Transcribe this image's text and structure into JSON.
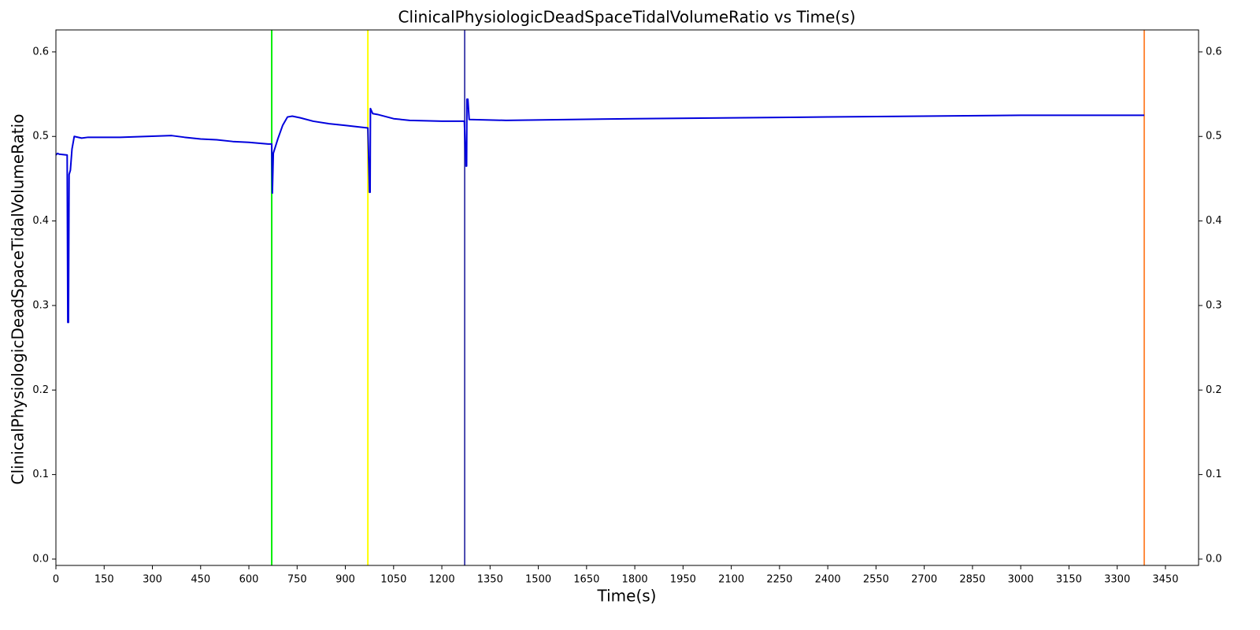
{
  "chart_data": {
    "type": "line",
    "title": "ClinicalPhysiologicDeadSpaceTidalVolumeRatio vs Time(s)",
    "xlabel": "Time(s)",
    "ylabel": "ClinicalPhysiologicDeadSpaceTidalVolumeRatio",
    "x": [
      0,
      5,
      10,
      35,
      37,
      39,
      41,
      45,
      50,
      57,
      80,
      100,
      200,
      360,
      400,
      450,
      500,
      550,
      600,
      660,
      671,
      673,
      676,
      690,
      705,
      720,
      735,
      760,
      800,
      850,
      900,
      970,
      975,
      977,
      978,
      985,
      1000,
      1050,
      1100,
      1200,
      1270,
      1275,
      1277,
      1278,
      1281,
      1285,
      1400,
      1800,
      2400,
      3000,
      3384
    ],
    "series": [
      {
        "name": "ClinicalPhysiologicDeadSpaceTidalVolumeRatio",
        "color": "#0000dd",
        "values": [
          0.478,
          0.48,
          0.479,
          0.478,
          0.28,
          0.28,
          0.455,
          0.46,
          0.485,
          0.5,
          0.498,
          0.499,
          0.499,
          0.501,
          0.499,
          0.497,
          0.496,
          0.494,
          0.493,
          0.491,
          0.491,
          0.433,
          0.48,
          0.497,
          0.513,
          0.523,
          0.524,
          0.522,
          0.518,
          0.515,
          0.513,
          0.51,
          0.434,
          0.434,
          0.533,
          0.527,
          0.526,
          0.521,
          0.519,
          0.518,
          0.518,
          0.465,
          0.465,
          0.544,
          0.544,
          0.52,
          0.519,
          0.521,
          0.523,
          0.525,
          0.525
        ]
      }
    ],
    "vlines": [
      {
        "x": 671,
        "color": "#00ee00"
      },
      {
        "x": 970,
        "color": "#ffff00"
      },
      {
        "x": 1271,
        "color": "#4a4ab0"
      },
      {
        "x": 3384,
        "color": "#ff8c40"
      }
    ],
    "xlim": [
      0,
      3553
    ],
    "ylim": [
      -0.0075,
      0.626
    ],
    "xticks": [
      0,
      150,
      300,
      450,
      600,
      750,
      900,
      1050,
      1200,
      1350,
      1500,
      1650,
      1800,
      1950,
      2100,
      2250,
      2400,
      2550,
      2700,
      2850,
      3000,
      3150,
      3300,
      3450
    ],
    "yticks": [
      {
        "value": 0,
        "label": "0.0"
      },
      0.1,
      0.2,
      0.3,
      0.4,
      0.5,
      0.6
    ],
    "right_axis": true
  }
}
